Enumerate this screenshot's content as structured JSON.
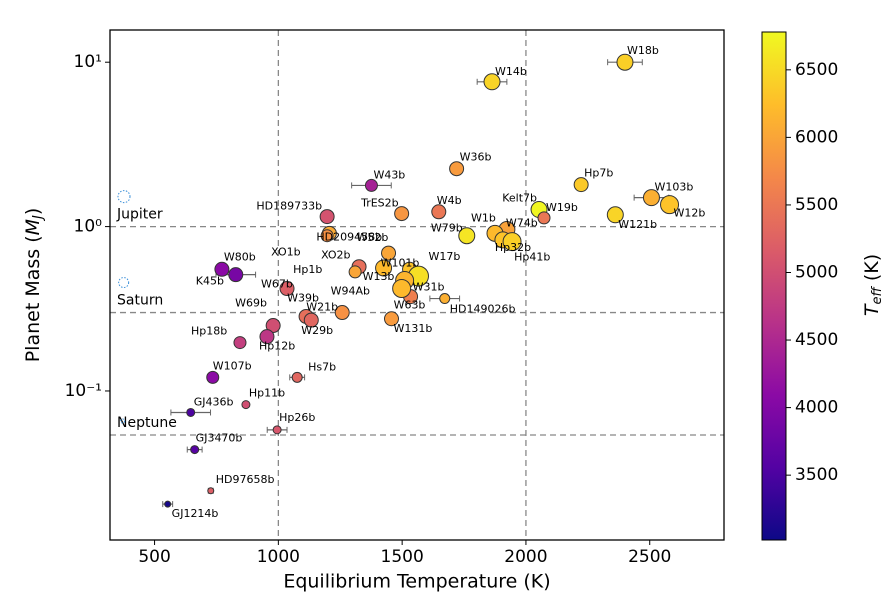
{
  "chart_data": {
    "type": "scatter",
    "xlabel": "Equilibrium Temperature (K)",
    "ylabel": {
      "text": "Planet Mass (",
      "symbol": "M",
      "subscript": "J",
      "close": ")"
    },
    "xlim": [
      320,
      2800
    ],
    "xticks": [
      500,
      1000,
      1500,
      2000,
      2500
    ],
    "ylim": [
      0.0124,
      15.7
    ],
    "yscale": "log",
    "yticks": [
      {
        "value": 10,
        "label": "10¹"
      },
      {
        "value": 1,
        "label": "10⁰"
      },
      {
        "value": 0.1,
        "label": "10⁻¹"
      }
    ],
    "vlines": [
      1000,
      2000
    ],
    "hlines": [
      {
        "label": "Jupiter",
        "value": 1.0
      },
      {
        "label": "Saturn",
        "value": 0.3
      },
      {
        "label": "Neptune",
        "value": 0.054
      }
    ],
    "colorbar": {
      "label": {
        "symbol": "T",
        "subscript": "eff",
        "text": " (K)"
      },
      "lim": [
        3020,
        6780
      ],
      "ticks": [
        3500,
        4000,
        4500,
        5000,
        5500,
        6000,
        6500
      ],
      "colormap": [
        "#0d0887",
        "#5302a3",
        "#8b0aa5",
        "#b83289",
        "#db5c68",
        "#f48849",
        "#febd2a",
        "#f0f921"
      ]
    },
    "names": [
      "W18b",
      "W14b",
      "W36b",
      "W43b",
      "HD189733b",
      "TrES2b",
      "W4b",
      "Hp7b",
      "W103b",
      "W12b",
      "W121b",
      "Kelt7b",
      "W19b",
      "W74b",
      "W1b",
      "W79b",
      "Hp32b",
      "Hp41b",
      "HD209458b",
      "XO1b",
      "W52b",
      "XO2b",
      "Hp1b",
      "W101b",
      "W13b",
      "W17b",
      "W31b",
      "W63b",
      "W94Ab",
      "HD149026b",
      "W131b",
      "W21b",
      "W39b",
      "W29b",
      "W67b",
      "W69b",
      "Hp12b",
      "Hp18b",
      "W80b",
      "K45b",
      "W107b",
      "Hs7b",
      "Hp11b",
      "GJ436b",
      "Hp26b",
      "GJ3470b",
      "HD97658b",
      "GJ1214b"
    ],
    "x": [
      2400,
      1863,
      1720,
      1376,
      1197,
      1498,
      1648,
      2223,
      2507,
      2580,
      2361,
      2053,
      2073,
      1923,
      1875,
      1761,
      1907,
      1944,
      1206,
      1197,
      1445,
      1326,
      1310,
      1530,
      1425,
      1566,
      1510,
      1534,
      1498,
      1672,
      1457,
      1258,
      1112,
      1133,
      1035,
      979,
      954,
      845,
      772,
      828,
      735,
      1076,
      869,
      646,
      995,
      662,
      727,
      553
    ],
    "y": [
      10.0,
      7.6,
      2.25,
      1.78,
      1.15,
      1.2,
      1.23,
      1.8,
      1.5,
      1.36,
      1.18,
      1.27,
      1.13,
      0.96,
      0.91,
      0.88,
      0.83,
      0.81,
      0.91,
      0.88,
      0.69,
      0.57,
      0.53,
      0.55,
      0.56,
      0.5,
      0.47,
      0.375,
      0.42,
      0.365,
      0.275,
      0.3,
      0.284,
      0.27,
      0.42,
      0.25,
      0.214,
      0.197,
      0.55,
      0.51,
      0.121,
      0.121,
      0.0826,
      0.074,
      0.058,
      0.044,
      0.0247,
      0.0205
    ],
    "xerr": [
      70,
      60,
      0,
      80,
      0,
      0,
      0,
      0,
      70,
      0,
      0,
      0,
      0,
      0,
      0,
      0,
      0,
      0,
      0,
      0,
      0,
      0,
      0,
      0,
      0,
      0,
      0,
      0,
      0,
      60,
      0,
      0,
      0,
      0,
      0,
      0,
      0,
      0,
      0,
      80,
      0,
      30,
      0,
      80,
      40,
      30,
      10,
      20
    ],
    "teff": [
      6400,
      6450,
      5900,
      4400,
      5050,
      5850,
      5500,
      6350,
      6100,
      6300,
      6450,
      6750,
      5500,
      5970,
      6200,
      6600,
      6300,
      6400,
      6050,
      5800,
      6000,
      5400,
      6000,
      6300,
      6200,
      6550,
      6150,
      5600,
      6200,
      6100,
      5900,
      5800,
      5400,
      5300,
      5200,
      5000,
      4700,
      4800,
      4100,
      3900,
      4100,
      5300,
      5000,
      3500,
      5100,
      3600,
      5200,
      3100
    ],
    "sizes": [
      8,
      8,
      7,
      6,
      7,
      7,
      7,
      7,
      8,
      9,
      8,
      8,
      6,
      8,
      8,
      8,
      8,
      9,
      7,
      6,
      7,
      7,
      6,
      7,
      8,
      10,
      9,
      7,
      9,
      5,
      7,
      7,
      7,
      7,
      7,
      7,
      7,
      6,
      7,
      7,
      6,
      5,
      4,
      4,
      4,
      4,
      3,
      3
    ]
  }
}
